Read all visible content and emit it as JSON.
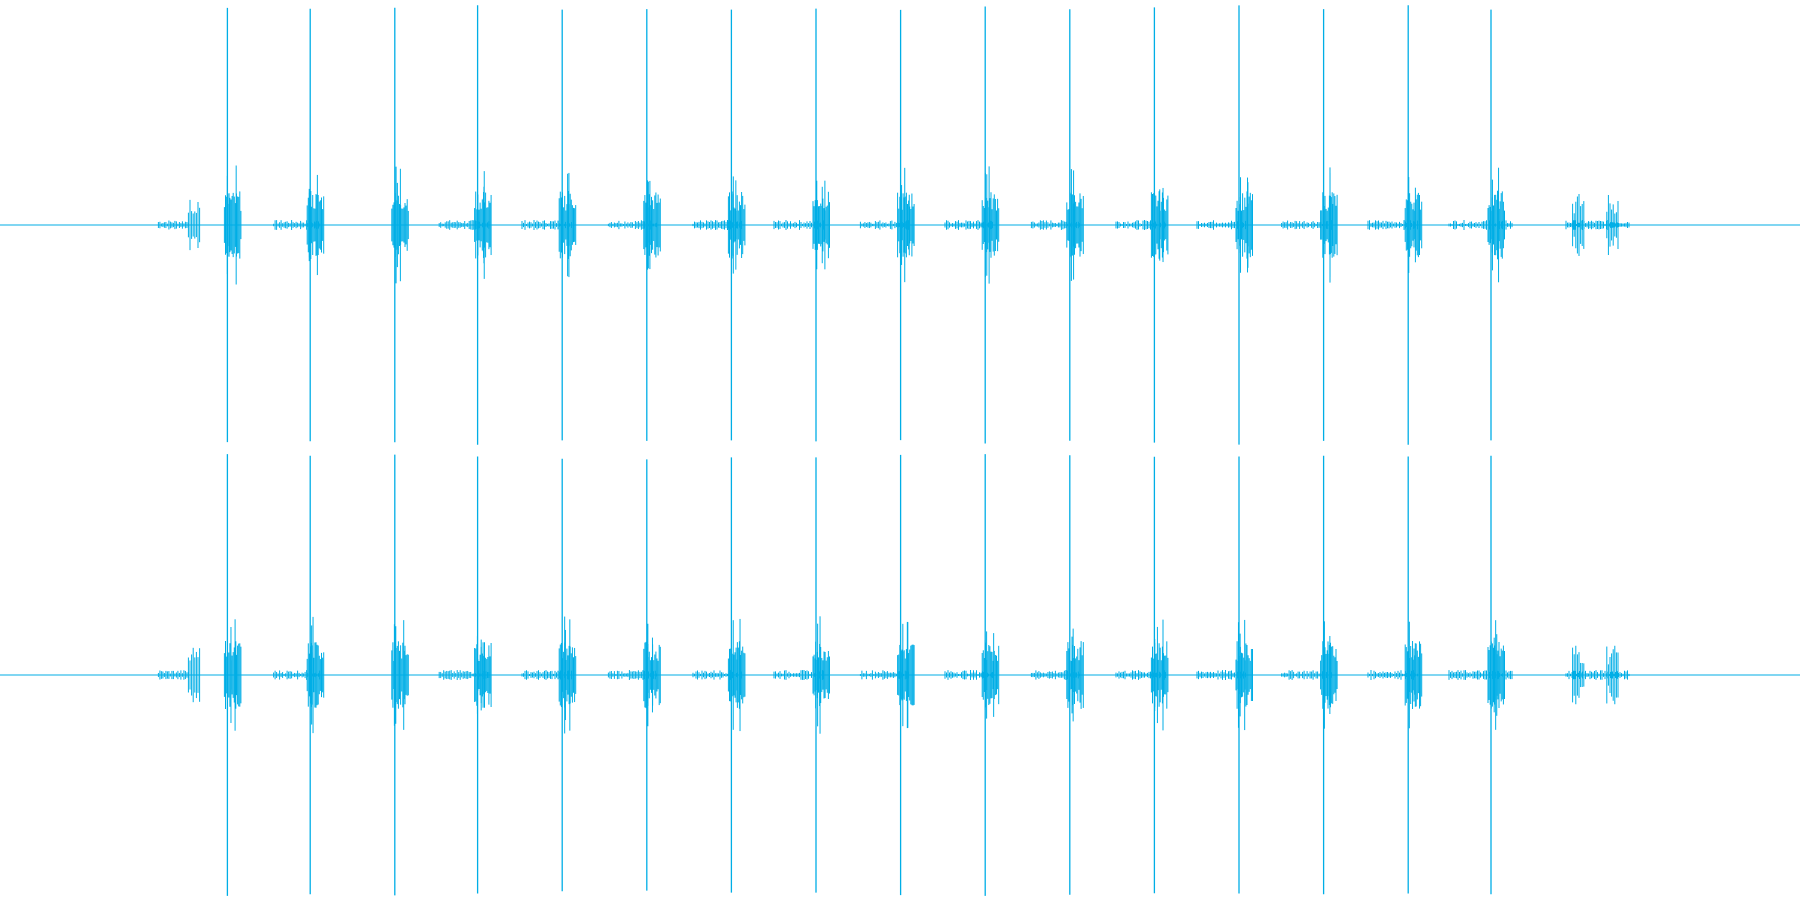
{
  "waveform": {
    "color": "#00aee6",
    "background": "#ffffff",
    "channels": [
      {
        "name": "channel-left"
      },
      {
        "name": "channel-right"
      }
    ],
    "transient_positions": [
      0.128,
      0.174,
      0.221,
      0.267,
      0.314,
      0.361,
      0.408,
      0.455,
      0.502,
      0.549,
      0.596,
      0.643,
      0.69,
      0.737,
      0.784,
      0.83
    ],
    "minor_bursts": [
      0.108,
      0.877,
      0.896
    ],
    "noise_segments": [
      [
        0.088,
        0.105
      ],
      [
        0.152,
        0.178
      ],
      [
        0.244,
        0.272
      ],
      [
        0.29,
        0.318
      ],
      [
        0.338,
        0.365
      ],
      [
        0.385,
        0.412
      ],
      [
        0.43,
        0.458
      ],
      [
        0.478,
        0.505
      ],
      [
        0.525,
        0.552
      ],
      [
        0.573,
        0.6
      ],
      [
        0.62,
        0.648
      ],
      [
        0.665,
        0.692
      ],
      [
        0.712,
        0.74
      ],
      [
        0.76,
        0.788
      ],
      [
        0.805,
        0.84
      ],
      [
        0.87,
        0.905
      ]
    ]
  }
}
